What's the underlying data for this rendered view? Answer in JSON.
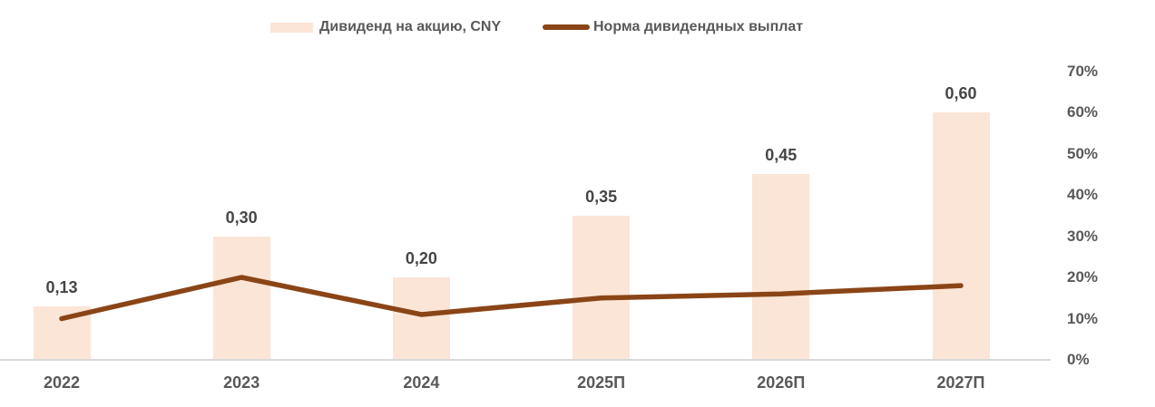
{
  "legend": {
    "bar_label": "Дивиденд на акцию, CNY",
    "line_label": "Норма дивидендных выплат"
  },
  "colors": {
    "bar_fill": "#FBE5D6",
    "line": "#8A4517",
    "axis_text": "#595959",
    "data_label_text": "#454545",
    "axis_line": "#D9D9D9",
    "background": "#FFFFFF"
  },
  "chart_data": {
    "type": "bar",
    "subtype": "bar+line combo",
    "categories": [
      "2022",
      "2023",
      "2024",
      "2025П",
      "2026П",
      "2027П"
    ],
    "series": [
      {
        "name": "Дивиденд на акцию, CNY",
        "type": "bar",
        "values": [
          0.13,
          0.3,
          0.2,
          0.35,
          0.45,
          0.6
        ],
        "data_labels": [
          "0,13",
          "0,30",
          "0,20",
          "0,35",
          "0,45",
          "0,60"
        ],
        "color": "#FBE5D6",
        "axis": "hidden-left, 0 to 0.70 CNY aligned with right axis"
      },
      {
        "name": "Норма дивидендных выплат",
        "type": "line",
        "values": [
          10,
          20,
          11,
          15,
          16,
          18
        ],
        "unit": "%",
        "color": "#8A4517",
        "axis": "right"
      }
    ],
    "right_axis": {
      "tick_labels": [
        "70%",
        "60%",
        "50%",
        "40%",
        "30%",
        "20%",
        "10%",
        "0%"
      ],
      "min": 0,
      "max": 70,
      "step": 10
    },
    "title": "",
    "xlabel": "",
    "ylabel": "",
    "grid": false,
    "legend_position": "top"
  }
}
